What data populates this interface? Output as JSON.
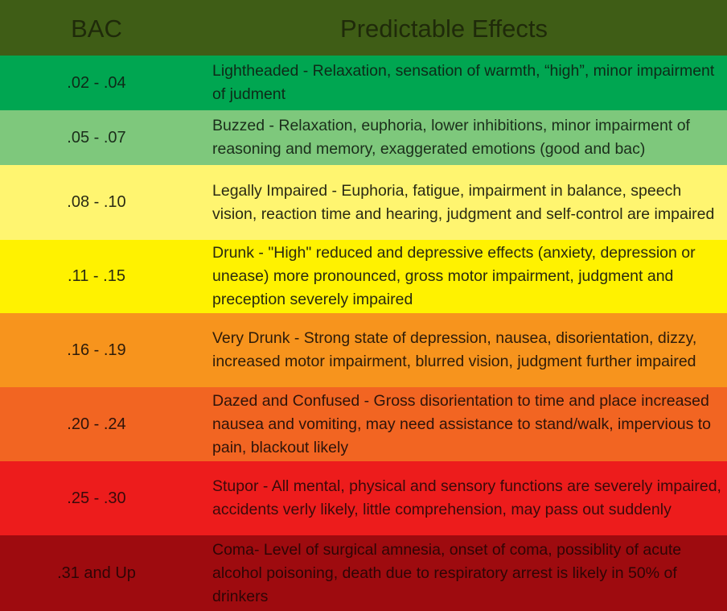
{
  "header": {
    "bac_label": "BAC",
    "effects_label": "Predictable Effects",
    "bg": "#3f5d16",
    "color": "#1f2a0a"
  },
  "rows": [
    {
      "bac": ".02 - .04",
      "effects": "Lightheaded - Relaxation, sensation of warmth, “high”, minor impairment of judment",
      "bg": "#00a651",
      "color": "#0e2a18"
    },
    {
      "bac": ".05 - .07",
      "effects": "Buzzed - Relaxation, euphoria, lower inhibitions, minor impairment of reasoning and memory, exaggerated emotions (good and bac)",
      "bg": "#7ec87c",
      "color": "#1b2e1b"
    },
    {
      "bac": ".08 - .10",
      "effects": "Legally Impaired - Euphoria, fatigue, impairment in balance, speech vision, reaction time and hearing, judgment and self-control are impaired",
      "bg": "#fff570",
      "color": "#2a2a14"
    },
    {
      "bac": ".11 - .15",
      "effects": "Drunk - \"High\" reduced and depressive effects (anxiety, depression or unease) more pronounced, gross motor impairment, judgment and preception severely impaired",
      "bg": "#fff200",
      "color": "#2a2a10"
    },
    {
      "bac": ".16 - .19",
      "effects": "Very Drunk - Strong state of depression, nausea, disorientation, dizzy, increased motor impairment, blurred vision, judgment further impaired",
      "bg": "#f7941d",
      "color": "#2e1c0a"
    },
    {
      "bac": ".20 - .24",
      "effects": "Dazed and Confused - Gross disorientation to time and place increased nausea and vomiting, may need assistance to stand/walk, impervious to pain, blackout likely",
      "bg": "#f26522",
      "color": "#2e140a"
    },
    {
      "bac": ".25 - .30",
      "effects": "Stupor - All mental, physical and sensory functions are severely impaired, accidents verly likely, little comprehension, may pass out suddenly",
      "bg": "#ed1c1c",
      "color": "#3a0a0a"
    },
    {
      "bac": ".31 and Up",
      "effects": "Coma- Level of surgical amnesia, onset of coma, possiblity of acute alcohol poisoning, death due to respiratory arrest is likely in 50% of drinkers",
      "bg": "#9e0b0f",
      "color": "#2e0505"
    }
  ]
}
